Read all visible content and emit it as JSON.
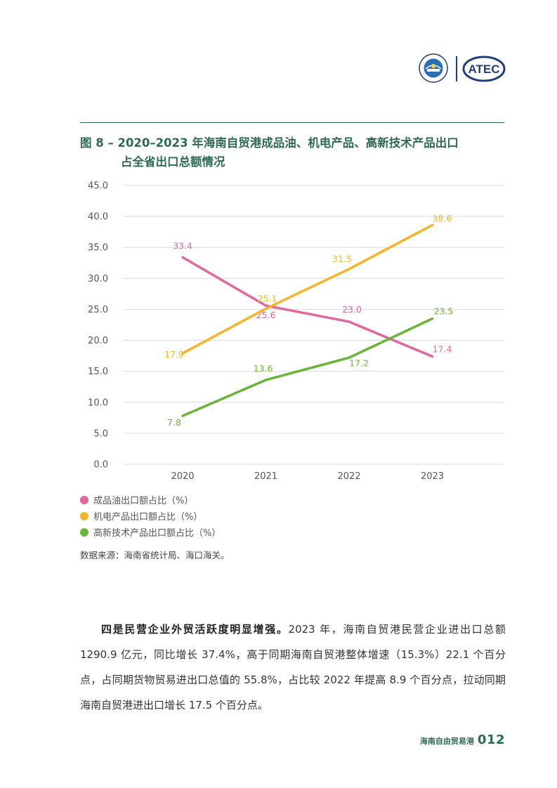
{
  "figure": {
    "title_line1": "图 8 – 2020–2023 年海南自贸港成品油、机电产品、高新技术产品出口",
    "title_line2": "占全省出口总额情况"
  },
  "chart_data": {
    "type": "line",
    "x": [
      "2020",
      "2021",
      "2022",
      "2023"
    ],
    "yticks": [
      "45.0",
      "40.0",
      "35.0",
      "30.0",
      "25.0",
      "20.0",
      "15.0",
      "10.0",
      "5.0",
      "0.0"
    ],
    "ylim": [
      0,
      45
    ],
    "grid": true,
    "legend_position": "bottom-left",
    "series": [
      {
        "name": "成品油出口额占比（%）",
        "color": "#e0679f",
        "values": [
          33.4,
          25.6,
          23.0,
          17.4
        ],
        "labels": [
          "33.4",
          "25.6",
          "23.0",
          "17.4"
        ]
      },
      {
        "name": "机电产品出口额占比（%）",
        "color": "#f3b52b",
        "values": [
          17.9,
          25.1,
          31.5,
          38.6
        ],
        "labels": [
          "17.9",
          "25.1",
          "31.5",
          "38.6"
        ]
      },
      {
        "name": "高新技术产品出口额占比（%）",
        "color": "#6ab437",
        "values": [
          7.8,
          13.6,
          17.2,
          23.5
        ],
        "labels": [
          "7.8",
          "13.6",
          "17.2",
          "23.5"
        ]
      }
    ]
  },
  "source": "数据来源：海南省统计局、海口海关。",
  "paragraph": {
    "lead": "四是民营企业外贸活跃度明显增强。",
    "body": "2023 年，海南自贸港民营企业进出口总额 1290.9 亿元，同比增长 37.4%，高于同期海南自贸港整体增速（15.3%）22.1 个百分点，占同期货物贸易进出口总值的 55.8%，占比较 2022 年提高 8.9 个百分点，拉动同期海南自贸港进出口增长 17.5 个百分点。"
  },
  "footer": {
    "label": "海南自由贸易港",
    "page": "012"
  },
  "logos": {
    "left": "seal-logo",
    "right_text": "ATEC",
    "brand_color": "#1f3f7a"
  }
}
